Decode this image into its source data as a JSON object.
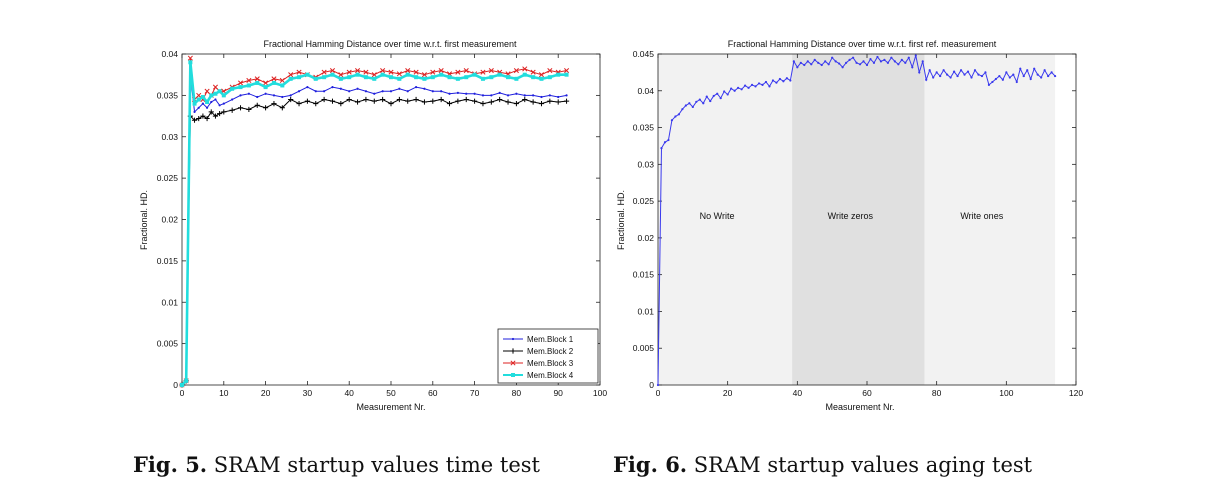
{
  "captions": [
    {
      "label": "Fig. 5.",
      "text": " SRAM startup values time test"
    },
    {
      "label": "Fig. 6.",
      "text": " SRAM startup values aging test"
    }
  ],
  "colors": {
    "block1": "#1f1fdd",
    "block2": "#000000",
    "block3": "#dd2222",
    "block4": "#22dddd",
    "line": "#3a3aee",
    "regionLight": "#f2f2f2",
    "regionDark": "#e0e0e0"
  },
  "chart_data": [
    {
      "type": "line",
      "title": "Fractional Hamming Distance over time w.r.t. first measurement",
      "xlabel": "Measurement Nr.",
      "ylabel": "Fractional. HD.",
      "xlim": [
        0,
        100
      ],
      "ylim": [
        0,
        0.04
      ],
      "xticks": [
        "0",
        "10",
        "20",
        "30",
        "40",
        "50",
        "60",
        "70",
        "80",
        "90",
        "100"
      ],
      "yticks": [
        "0",
        "0.005",
        "0.01",
        "0.015",
        "0.02",
        "0.025",
        "0.03",
        "0.035",
        "0.04"
      ],
      "legend_position": "bottom-right",
      "grid": false,
      "series": [
        {
          "name": "Mem.Block 1",
          "color": "#1f1fdd",
          "marker": "dot",
          "x": [
            0,
            1,
            2,
            3,
            4,
            5,
            6,
            7,
            8,
            9,
            10,
            12,
            14,
            16,
            18,
            20,
            22,
            24,
            26,
            28,
            30,
            32,
            34,
            36,
            38,
            40,
            42,
            44,
            46,
            48,
            50,
            52,
            54,
            56,
            58,
            60,
            62,
            64,
            66,
            68,
            70,
            72,
            74,
            76,
            78,
            80,
            82,
            84,
            86,
            88,
            90,
            92
          ],
          "y": [
            0,
            0.0005,
            0.0375,
            0.033,
            0.0335,
            0.034,
            0.0335,
            0.0342,
            0.0345,
            0.0338,
            0.034,
            0.0345,
            0.035,
            0.0352,
            0.0348,
            0.0352,
            0.035,
            0.0348,
            0.035,
            0.0355,
            0.036,
            0.0355,
            0.0355,
            0.036,
            0.0358,
            0.0355,
            0.0358,
            0.0355,
            0.0352,
            0.0355,
            0.0355,
            0.0358,
            0.0355,
            0.036,
            0.0358,
            0.0355,
            0.0355,
            0.0352,
            0.0353,
            0.0352,
            0.0352,
            0.035,
            0.035,
            0.0353,
            0.035,
            0.0352,
            0.035,
            0.035,
            0.0348,
            0.035,
            0.0348,
            0.035
          ]
        },
        {
          "name": "Mem.Block 2",
          "color": "#000000",
          "marker": "plus",
          "x": [
            0,
            1,
            2,
            3,
            4,
            5,
            6,
            7,
            8,
            9,
            10,
            12,
            14,
            16,
            18,
            20,
            22,
            24,
            26,
            28,
            30,
            32,
            34,
            36,
            38,
            40,
            42,
            44,
            46,
            48,
            50,
            52,
            54,
            56,
            58,
            60,
            62,
            64,
            66,
            68,
            70,
            72,
            74,
            76,
            78,
            80,
            82,
            84,
            86,
            88,
            90,
            92
          ],
          "y": [
            0,
            0.0005,
            0.0325,
            0.032,
            0.0322,
            0.0325,
            0.0322,
            0.033,
            0.0325,
            0.0328,
            0.033,
            0.0332,
            0.0335,
            0.0333,
            0.0338,
            0.0335,
            0.034,
            0.0335,
            0.0345,
            0.034,
            0.0343,
            0.034,
            0.0345,
            0.0343,
            0.034,
            0.0345,
            0.0342,
            0.0345,
            0.0343,
            0.0345,
            0.034,
            0.0345,
            0.0343,
            0.0345,
            0.0342,
            0.0343,
            0.0345,
            0.034,
            0.0343,
            0.0345,
            0.0343,
            0.034,
            0.0342,
            0.0345,
            0.0342,
            0.034,
            0.0345,
            0.0342,
            0.034,
            0.0343,
            0.0342,
            0.0343
          ]
        },
        {
          "name": "Mem.Block 3",
          "color": "#dd2222",
          "marker": "x",
          "x": [
            0,
            1,
            2,
            3,
            4,
            5,
            6,
            7,
            8,
            9,
            10,
            12,
            14,
            16,
            18,
            20,
            22,
            24,
            26,
            28,
            30,
            32,
            34,
            36,
            38,
            40,
            42,
            44,
            46,
            48,
            50,
            52,
            54,
            56,
            58,
            60,
            62,
            64,
            66,
            68,
            70,
            72,
            74,
            76,
            78,
            80,
            82,
            84,
            86,
            88,
            90,
            92
          ],
          "y": [
            0,
            0.0005,
            0.0395,
            0.0345,
            0.035,
            0.0345,
            0.0355,
            0.035,
            0.036,
            0.0355,
            0.0355,
            0.036,
            0.0365,
            0.0368,
            0.037,
            0.0365,
            0.037,
            0.0368,
            0.0375,
            0.0378,
            0.0375,
            0.0372,
            0.0378,
            0.038,
            0.0375,
            0.0378,
            0.038,
            0.0378,
            0.0375,
            0.038,
            0.0378,
            0.0376,
            0.038,
            0.0378,
            0.0375,
            0.0378,
            0.038,
            0.0376,
            0.0378,
            0.038,
            0.0376,
            0.0378,
            0.038,
            0.0378,
            0.0376,
            0.038,
            0.0382,
            0.0378,
            0.0375,
            0.038,
            0.0378,
            0.038
          ]
        },
        {
          "name": "Mem.Block 4",
          "color": "#22dddd",
          "marker": "square",
          "x": [
            0,
            1,
            2,
            3,
            4,
            5,
            6,
            7,
            8,
            9,
            10,
            12,
            14,
            16,
            18,
            20,
            22,
            24,
            26,
            28,
            30,
            32,
            34,
            36,
            38,
            40,
            42,
            44,
            46,
            48,
            50,
            52,
            54,
            56,
            58,
            60,
            62,
            64,
            66,
            68,
            70,
            72,
            74,
            76,
            78,
            80,
            82,
            84,
            86,
            88,
            90,
            92
          ],
          "y": [
            0,
            0.0005,
            0.039,
            0.034,
            0.0345,
            0.0348,
            0.0342,
            0.035,
            0.0352,
            0.0355,
            0.035,
            0.0358,
            0.036,
            0.0362,
            0.0365,
            0.036,
            0.0365,
            0.0362,
            0.037,
            0.0372,
            0.0375,
            0.037,
            0.0372,
            0.0375,
            0.037,
            0.0372,
            0.0375,
            0.0372,
            0.037,
            0.0375,
            0.0372,
            0.037,
            0.0375,
            0.0372,
            0.037,
            0.0372,
            0.0375,
            0.0372,
            0.037,
            0.0372,
            0.0375,
            0.037,
            0.0372,
            0.0375,
            0.0372,
            0.037,
            0.0375,
            0.0372,
            0.037,
            0.0372,
            0.0375,
            0.0375
          ]
        }
      ]
    },
    {
      "type": "line",
      "title": "Fractional Hamming Distance over time w.r.t. first ref. measurement",
      "xlabel": "Measurement Nr.",
      "ylabel": "Fractional. HD.",
      "xlim": [
        0,
        120
      ],
      "ylim": [
        0,
        0.045
      ],
      "xticks": [
        "0",
        "20",
        "40",
        "60",
        "80",
        "100",
        "120"
      ],
      "yticks": [
        "0",
        "0.005",
        "0.01",
        "0.015",
        "0.02",
        "0.025",
        "0.03",
        "0.035",
        "0.04",
        "0.045"
      ],
      "grid": false,
      "regions": [
        {
          "label": "No Write",
          "x0": 0,
          "x1": 38.5
        },
        {
          "label": "Write zeros",
          "x0": 38.5,
          "x1": 76.5
        },
        {
          "label": "Write ones",
          "x0": 76.5,
          "x1": 114
        }
      ],
      "series": [
        {
          "color": "#3a3aee",
          "marker": "dot",
          "x": [
            0,
            1,
            2,
            3,
            4,
            5,
            6,
            7,
            8,
            9,
            10,
            11,
            12,
            13,
            14,
            15,
            16,
            17,
            18,
            19,
            20,
            21,
            22,
            23,
            24,
            25,
            26,
            27,
            28,
            29,
            30,
            31,
            32,
            33,
            34,
            35,
            36,
            37,
            38,
            39,
            40,
            41,
            42,
            43,
            44,
            45,
            46,
            47,
            48,
            49,
            50,
            51,
            52,
            53,
            54,
            55,
            56,
            57,
            58,
            59,
            60,
            61,
            62,
            63,
            64,
            65,
            66,
            67,
            68,
            69,
            70,
            71,
            72,
            73,
            74,
            75,
            76,
            77,
            78,
            79,
            80,
            81,
            82,
            83,
            84,
            85,
            86,
            87,
            88,
            89,
            90,
            91,
            92,
            93,
            94,
            95,
            96,
            97,
            98,
            99,
            100,
            101,
            102,
            103,
            104,
            105,
            106,
            107,
            108,
            109,
            110,
            111,
            112,
            113,
            114
          ],
          "y": [
            0,
            0.0322,
            0.033,
            0.0333,
            0.036,
            0.0365,
            0.0368,
            0.0375,
            0.038,
            0.0383,
            0.0378,
            0.0385,
            0.0388,
            0.0383,
            0.0392,
            0.0386,
            0.0393,
            0.0396,
            0.039,
            0.0399,
            0.0395,
            0.0403,
            0.04,
            0.0404,
            0.0402,
            0.0407,
            0.0404,
            0.0408,
            0.0406,
            0.041,
            0.0408,
            0.0412,
            0.0406,
            0.0414,
            0.0411,
            0.0416,
            0.0413,
            0.0417,
            0.0414,
            0.044,
            0.0432,
            0.0438,
            0.0435,
            0.044,
            0.0436,
            0.0442,
            0.0438,
            0.0435,
            0.044,
            0.0436,
            0.0445,
            0.044,
            0.0437,
            0.0432,
            0.0438,
            0.0442,
            0.0445,
            0.0438,
            0.0436,
            0.044,
            0.0435,
            0.0443,
            0.0438,
            0.0446,
            0.044,
            0.0442,
            0.0438,
            0.0445,
            0.044,
            0.0436,
            0.0442,
            0.0438,
            0.0445,
            0.0432,
            0.0448,
            0.0425,
            0.044,
            0.0415,
            0.0428,
            0.0418,
            0.0425,
            0.042,
            0.0428,
            0.0422,
            0.0418,
            0.0426,
            0.042,
            0.0428,
            0.0422,
            0.0426,
            0.0418,
            0.0428,
            0.0422,
            0.042,
            0.0425,
            0.0408,
            0.0412,
            0.0416,
            0.042,
            0.0415,
            0.0425,
            0.0418,
            0.0422,
            0.0412,
            0.043,
            0.042,
            0.0428,
            0.0416,
            0.043,
            0.0422,
            0.0418,
            0.0428,
            0.042,
            0.0425,
            0.042
          ]
        }
      ]
    }
  ]
}
